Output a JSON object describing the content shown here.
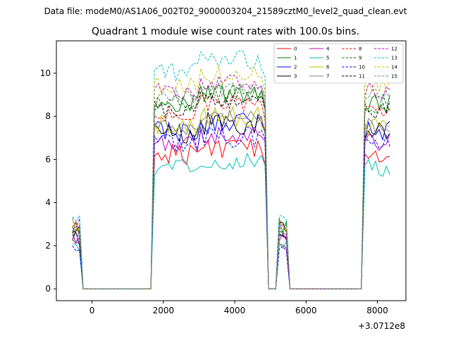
{
  "figure": {
    "suptitle": "Data file: modeM0/AS1A06_002T02_9000003204_21589cztM0_level2_quad_clean.evt",
    "offset_label": "+3.0712e8"
  },
  "chart_data": {
    "type": "line",
    "title": "Quadrant 1 module wise count rates with 100.0s bins.",
    "xlabel": "",
    "ylabel": "",
    "xlim": [
      -1000,
      8800
    ],
    "ylim": [
      -0.55,
      11.5
    ],
    "x_ticks": [
      0,
      2000,
      4000,
      6000,
      8000
    ],
    "y_ticks": [
      0,
      2,
      4,
      6,
      8,
      10
    ],
    "x_offset": 307120000,
    "grid": false,
    "legend_position": "top-right",
    "segments": [
      {
        "x_start": -550,
        "x_end": 1650,
        "active": [
          [
            -550,
            -350
          ]
        ]
      },
      {
        "x_start": 1650,
        "x_end": 7450,
        "active": [
          [
            1750,
            4850
          ],
          [
            5250,
            5450
          ]
        ]
      },
      {
        "x_start": 7450,
        "x_end": 8350,
        "active": [
          [
            7650,
            8350
          ]
        ]
      }
    ],
    "series": [
      {
        "name": "0",
        "color": "#ff0000",
        "dash": "solid",
        "level": 6.2,
        "amp": 0.35
      },
      {
        "name": "1",
        "color": "#008000",
        "dash": "solid",
        "level": 8.6,
        "amp": 0.3
      },
      {
        "name": "2",
        "color": "#0000ff",
        "dash": "solid",
        "level": 7.3,
        "amp": 0.35
      },
      {
        "name": "3",
        "color": "#000000",
        "dash": "solid",
        "level": 7.3,
        "amp": 0.4
      },
      {
        "name": "4",
        "color": "#bf00bf",
        "dash": "solid",
        "level": 6.8,
        "amp": 0.3
      },
      {
        "name": "5",
        "color": "#00bfbf",
        "dash": "solid",
        "level": 5.6,
        "amp": 0.3
      },
      {
        "name": "6",
        "color": "#bfbf00",
        "dash": "solid",
        "level": 7.6,
        "amp": 0.35
      },
      {
        "name": "7",
        "color": "#808080",
        "dash": "solid",
        "level": 7.5,
        "amp": 0.3
      },
      {
        "name": "8",
        "color": "#ff0000",
        "dash": "dashed",
        "level": 8.2,
        "amp": 0.3
      },
      {
        "name": "9",
        "color": "#008000",
        "dash": "dashed",
        "level": 8.6,
        "amp": 0.35
      },
      {
        "name": "10",
        "color": "#0000ff",
        "dash": "dashed",
        "level": 6.7,
        "amp": 0.35
      },
      {
        "name": "11",
        "color": "#000000",
        "dash": "dashed",
        "level": 8.3,
        "amp": 0.3
      },
      {
        "name": "12",
        "color": "#bf00bf",
        "dash": "dashed",
        "level": 9.1,
        "amp": 0.3
      },
      {
        "name": "13",
        "color": "#00bfbf",
        "dash": "dashed",
        "level": 10.1,
        "amp": 0.35
      },
      {
        "name": "14",
        "color": "#bfbf00",
        "dash": "dashed",
        "level": 9.4,
        "amp": 0.3
      },
      {
        "name": "15",
        "color": "#808080",
        "dash": "dashed",
        "level": 8.9,
        "amp": 0.3
      }
    ]
  }
}
